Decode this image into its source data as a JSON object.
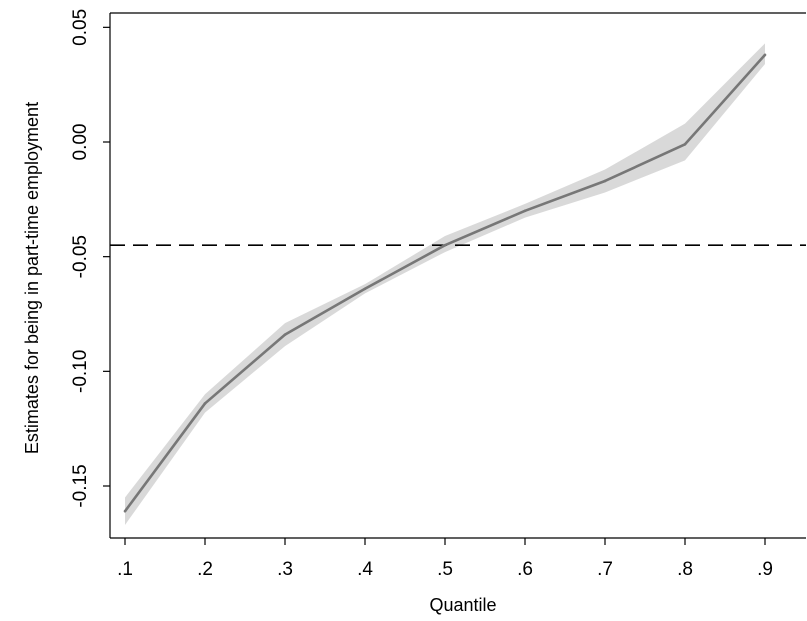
{
  "chart_data": {
    "type": "line",
    "xlabel": "Quantile",
    "ylabel": "Estimates for being in part-time employment",
    "x": [
      0.1,
      0.2,
      0.3,
      0.4,
      0.5,
      0.6,
      0.7,
      0.8,
      0.9
    ],
    "x_tick_labels": [
      ".1",
      ".2",
      ".3",
      ".4",
      ".5",
      ".6",
      ".7",
      ".8",
      ".9"
    ],
    "y_ticks": [
      0.05,
      0.0,
      -0.05,
      -0.1,
      -0.15
    ],
    "y_tick_labels": [
      "0.05",
      "0.00",
      "-0.05",
      "-0.10",
      "-0.15"
    ],
    "xlim": [
      0.1,
      0.95
    ],
    "ylim": [
      -0.175,
      0.057
    ],
    "grid": false,
    "series": [
      {
        "values": [
          -0.161,
          -0.114,
          -0.084,
          -0.064,
          -0.045,
          -0.03,
          -0.017,
          -0.001,
          0.038
        ],
        "lower": [
          -0.167,
          -0.118,
          -0.089,
          -0.066,
          -0.048,
          -0.033,
          -0.022,
          -0.008,
          0.034
        ],
        "upper": [
          -0.155,
          -0.11,
          -0.079,
          -0.062,
          -0.041,
          -0.027,
          -0.012,
          0.008,
          0.043
        ],
        "color": "#777777",
        "band_color": "#d9d9d9"
      }
    ],
    "reference_line": {
      "y": -0.045,
      "style": "dashed",
      "color": "#000000"
    }
  }
}
